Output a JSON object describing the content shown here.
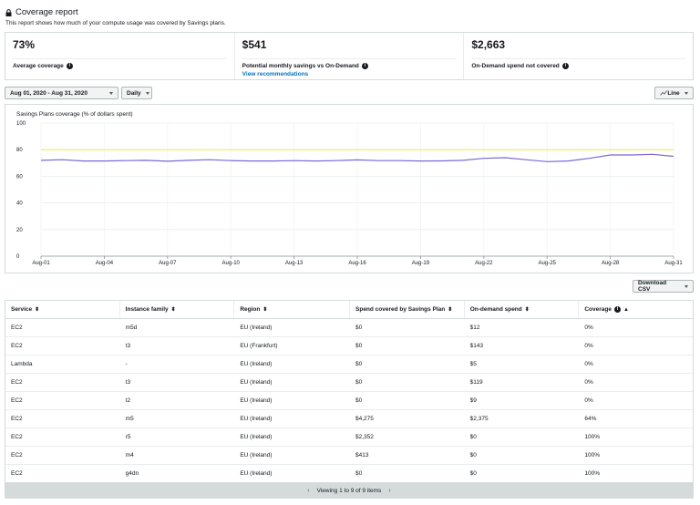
{
  "header": {
    "title": "Coverage report",
    "subtitle": "This report shows how much of your compute usage was covered by Savings plans."
  },
  "summary": [
    {
      "value": "73%",
      "label": "Average coverage"
    },
    {
      "value": "$541",
      "label": "Potential monthly savings vs On-Demand",
      "link": "View recommendations"
    },
    {
      "value": "$2,663",
      "label": "On-Demand spend not covered"
    }
  ],
  "controls": {
    "date_range": "Aug 01, 2020 - Aug 31, 2020",
    "granularity": "Daily",
    "chart_type": "Line",
    "download": "Download CSV"
  },
  "chart_data": {
    "type": "line",
    "title": "Savings Plans coverage (% of dollars spent)",
    "x": [
      "Aug-01",
      "Aug-02",
      "Aug-03",
      "Aug-04",
      "Aug-05",
      "Aug-06",
      "Aug-07",
      "Aug-08",
      "Aug-09",
      "Aug-10",
      "Aug-11",
      "Aug-12",
      "Aug-13",
      "Aug-14",
      "Aug-15",
      "Aug-16",
      "Aug-17",
      "Aug-18",
      "Aug-19",
      "Aug-20",
      "Aug-21",
      "Aug-22",
      "Aug-23",
      "Aug-24",
      "Aug-25",
      "Aug-26",
      "Aug-27",
      "Aug-28",
      "Aug-29",
      "Aug-30",
      "Aug-31"
    ],
    "xticks": [
      "Aug-01",
      "Aug-04",
      "Aug-07",
      "Aug-10",
      "Aug-13",
      "Aug-16",
      "Aug-19",
      "Aug-22",
      "Aug-25",
      "Aug-28",
      "Aug-31"
    ],
    "yticks": [
      0,
      20,
      40,
      60,
      80,
      100
    ],
    "ylim": [
      0,
      100
    ],
    "series": [
      {
        "values": [
          72,
          72.5,
          71.5,
          71.5,
          71.8,
          72,
          71.3,
          72,
          72.5,
          71.8,
          71.5,
          71.5,
          71.8,
          71.5,
          71.8,
          72.3,
          71.8,
          71.8,
          71.5,
          71.6,
          72,
          73.5,
          74,
          72.5,
          71,
          71.5,
          73.5,
          76,
          76,
          76.5,
          75
        ],
        "color": "#7b68d6"
      }
    ],
    "reference_line": {
      "value": 80,
      "color": "#f2e94e"
    },
    "grid": true
  },
  "table": {
    "columns": [
      "Service",
      "Instance family",
      "Region",
      "Spend covered by Savings Plan",
      "On-demand spend",
      "Coverage"
    ],
    "rows": [
      [
        "EC2",
        "m5d",
        "EU (Ireland)",
        "$0",
        "$12",
        "0%"
      ],
      [
        "EC2",
        "t3",
        "EU (Frankfurt)",
        "$0",
        "$143",
        "0%"
      ],
      [
        "Lambda",
        "-",
        "EU (Ireland)",
        "$0",
        "$5",
        "0%"
      ],
      [
        "EC2",
        "t3",
        "EU (Ireland)",
        "$0",
        "$119",
        "0%"
      ],
      [
        "EC2",
        "t2",
        "EU (Ireland)",
        "$0",
        "$9",
        "0%"
      ],
      [
        "EC2",
        "m5",
        "EU (Ireland)",
        "$4,275",
        "$2,375",
        "64%"
      ],
      [
        "EC2",
        "r5",
        "EU (Ireland)",
        "$2,352",
        "$0",
        "100%"
      ],
      [
        "EC2",
        "m4",
        "EU (Ireland)",
        "$413",
        "$0",
        "100%"
      ],
      [
        "EC2",
        "g4dn",
        "EU (Ireland)",
        "$0",
        "$0",
        "100%"
      ]
    ]
  },
  "pagination": {
    "text": "Viewing 1 to 9 of 9 items"
  }
}
